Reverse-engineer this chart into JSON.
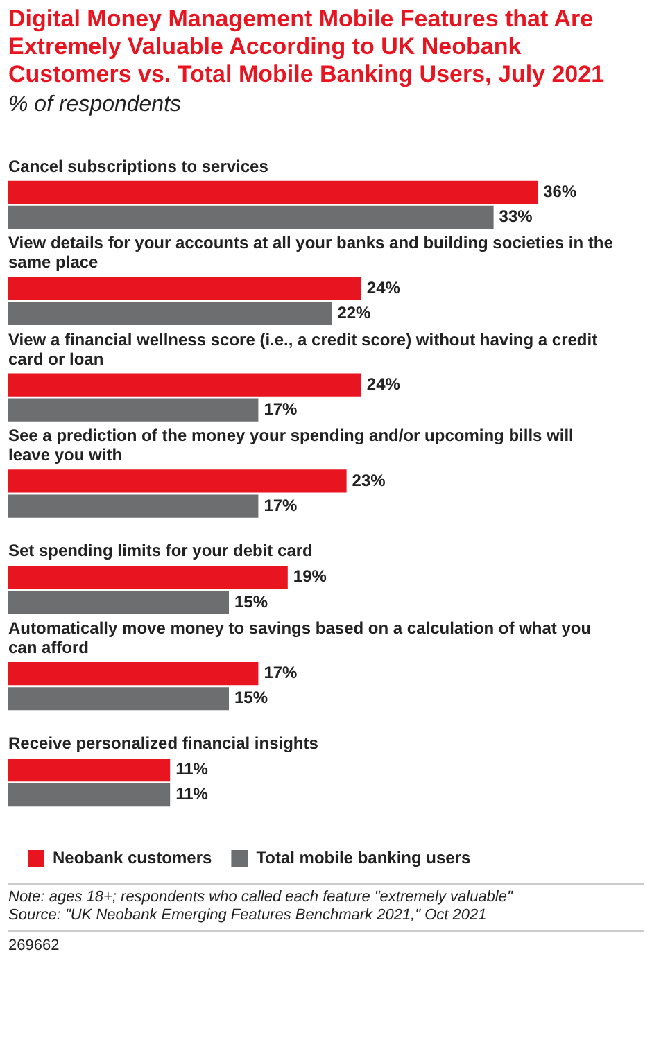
{
  "chart_data": {
    "type": "bar",
    "orientation": "horizontal",
    "title": "Digital Money Management Mobile Features that Are Extremely Valuable According to UK Neobank Customers vs. Total Mobile Banking Users, July 2021",
    "subtitle": "% of respondents",
    "categories": [
      "Cancel subscriptions to services",
      "View details for your accounts at all your banks and building societies in the same place",
      "View a financial wellness score (i.e., a credit score) without having a credit card or loan",
      "See a prediction of the money your spending and/or upcoming bills will leave you with",
      "Set spending limits for your debit card",
      "Automatically move money to savings based on a calculation of what you can afford",
      "Receive personalized financial insights"
    ],
    "series": [
      {
        "name": "Neobank customers",
        "color": "#e8141f",
        "values": [
          36,
          24,
          24,
          23,
          19,
          17,
          11
        ],
        "value_labels": [
          "36%",
          "24%",
          "24%",
          "23%",
          "19%",
          "17%",
          "11%"
        ]
      },
      {
        "name": "Total mobile banking users",
        "color": "#6d6e70",
        "values": [
          33,
          22,
          17,
          17,
          15,
          15,
          11
        ],
        "value_labels": [
          "33%",
          "22%",
          "17%",
          "17%",
          "15%",
          "15%",
          "11%"
        ]
      }
    ],
    "legend": "bottom left",
    "tick_labels": false,
    "annotations": [
      "Note: ages 18+; respondents who called each feature \"extremely valuable\"",
      "Source: \"UK Neobank Emerging Features Benchmark 2021,\" Oct 2021",
      "269662"
    ]
  }
}
